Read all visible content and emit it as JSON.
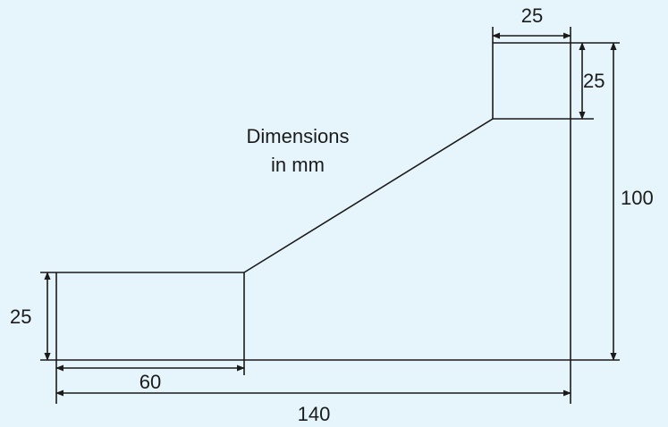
{
  "diagram": {
    "note_line1": "Dimensions",
    "note_line2": "in mm",
    "colors": {
      "background": "#e6f5fc",
      "ink": "#1b1b1b"
    },
    "dimensions": {
      "top_width": "25",
      "top_height": "25",
      "total_height": "100",
      "left_height": "25",
      "left_length": "60",
      "total_length": "140"
    }
  }
}
